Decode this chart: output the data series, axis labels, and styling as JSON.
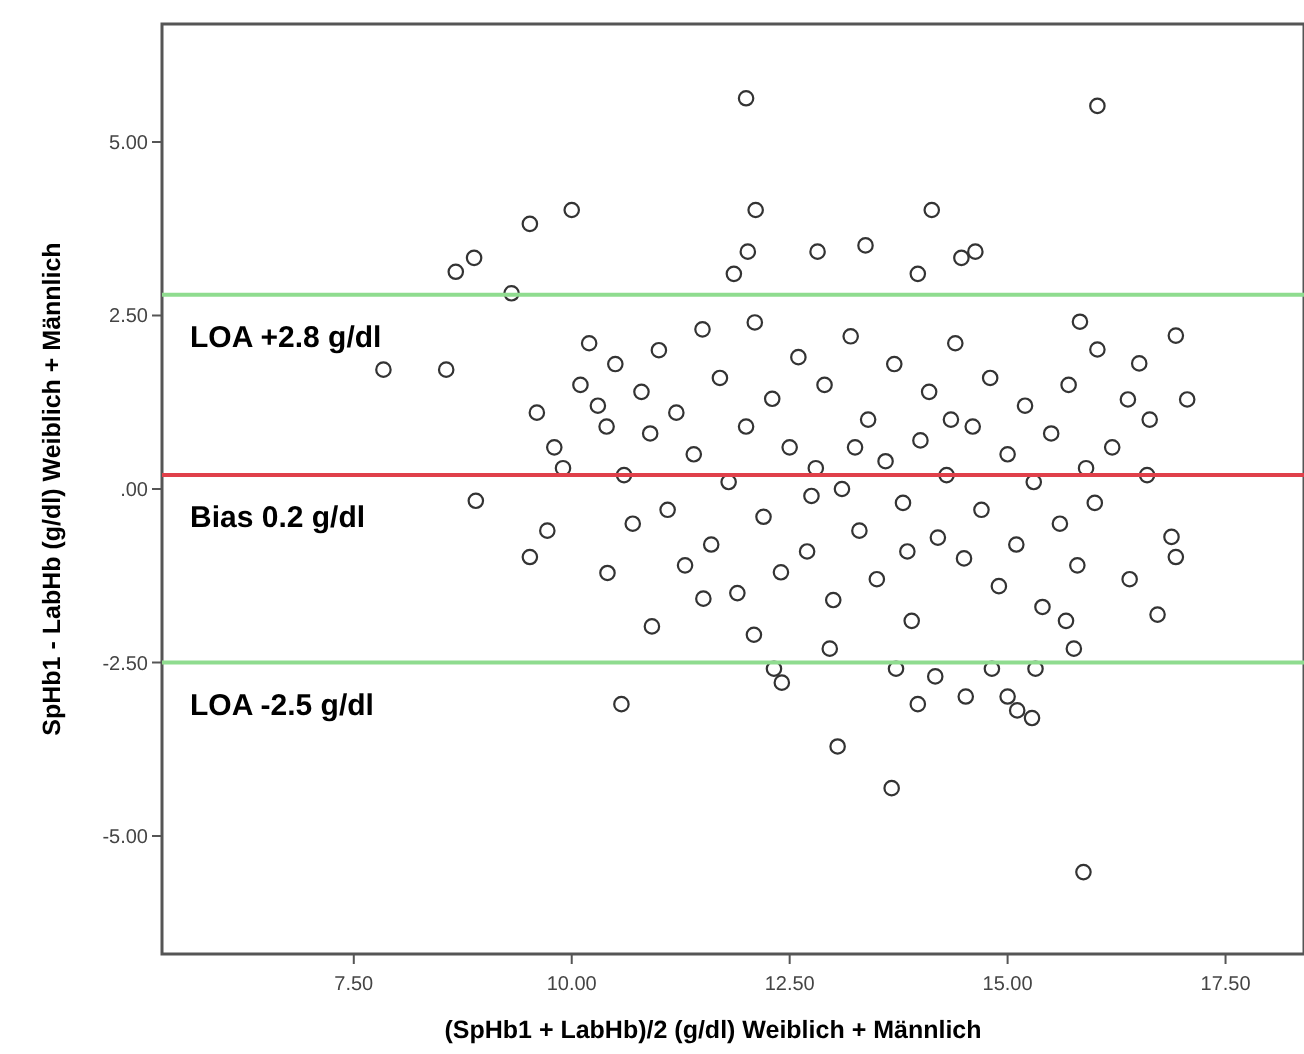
{
  "chart_data": {
    "type": "scatter",
    "xlabel": "(SpHb1 + LabHb)/2  (g/dl) Weiblich + Männlich",
    "ylabel": "SpHb1 - LabHb  (g/dl) Weiblich + Männlich",
    "xlim": [
      5.3,
      18.4
    ],
    "ylim": [
      -6.7,
      6.7
    ],
    "xticks": [
      {
        "value": 7.5,
        "label": "7.50"
      },
      {
        "value": 10,
        "label": "10.00"
      },
      {
        "value": 12.5,
        "label": "12.50"
      },
      {
        "value": 15,
        "label": "15.00"
      },
      {
        "value": 17.5,
        "label": "17.50"
      }
    ],
    "yticks": [
      {
        "value": 5,
        "label": "5.00"
      },
      {
        "value": 2.5,
        "label": "2.50"
      },
      {
        "value": 0,
        "label": ".00"
      },
      {
        "value": -2.5,
        "label": "-2.50"
      },
      {
        "value": -5,
        "label": "-5.00"
      }
    ],
    "marker": "circle",
    "grid": false,
    "ref_lines": [
      {
        "axis": "y",
        "value": 2.8,
        "label": "LOA +2.8 g/dl",
        "color": "#8fdc8f"
      },
      {
        "axis": "y",
        "value": 0.2,
        "label": "Bias 0.2 g/dl",
        "color": "#e0404a"
      },
      {
        "axis": "y",
        "value": -2.5,
        "label": "LOA -2.5 g/dl",
        "color": "#8fdc8f"
      }
    ],
    "series": [
      {
        "color": "#333333",
        "x": [
          12.0,
          16.03,
          10.0,
          9.52,
          8.88,
          8.67,
          9.31,
          7.84,
          8.56,
          12.11,
          14.13,
          12.02,
          12.82,
          13.37,
          14.47,
          14.63,
          13.97,
          11.86,
          16.93,
          17.06,
          15.83,
          16.03,
          16.51,
          16.38,
          16.63,
          10.57,
          10.92,
          9.52,
          10.41,
          9.72,
          8.9,
          13.05,
          13.67,
          15.87,
          13.97,
          14.52,
          15.0,
          15.28,
          15.11,
          12.41,
          12.32,
          14.17,
          13.72,
          14.82,
          15.32,
          15.76,
          16.72,
          16.93,
          16.88,
          15.67,
          12.96,
          12.09,
          11.51,
          9.6,
          9.8,
          9.9,
          10.1,
          10.2,
          10.3,
          10.4,
          10.5,
          10.6,
          10.7,
          10.8,
          10.9,
          11.0,
          11.1,
          11.2,
          11.3,
          11.4,
          11.5,
          11.6,
          11.7,
          11.8,
          11.9,
          12.0,
          12.1,
          12.2,
          12.3,
          12.4,
          12.5,
          12.6,
          12.7,
          12.8,
          12.9,
          13.0,
          13.1,
          13.2,
          13.3,
          13.4,
          13.5,
          13.6,
          13.7,
          13.8,
          13.9,
          14.0,
          14.1,
          14.2,
          14.3,
          14.4,
          14.5,
          14.6,
          14.7,
          14.8,
          14.9,
          15.0,
          15.1,
          15.2,
          15.3,
          15.4,
          15.5,
          15.6,
          15.7,
          15.8,
          15.9,
          16.0,
          16.2,
          16.4,
          16.6,
          13.25,
          13.85,
          14.35,
          12.75
        ],
        "values": [
          5.63,
          5.52,
          4.02,
          3.82,
          3.33,
          3.13,
          2.82,
          1.72,
          1.72,
          4.02,
          4.02,
          3.42,
          3.42,
          3.51,
          3.33,
          3.42,
          3.1,
          3.1,
          2.21,
          1.29,
          2.41,
          2.01,
          1.81,
          1.29,
          1.0,
          -3.1,
          -1.98,
          -0.98,
          -1.21,
          -0.6,
          -0.17,
          -3.71,
          -4.31,
          -5.52,
          -3.1,
          -2.99,
          -2.99,
          -3.3,
          -3.19,
          -2.79,
          -2.59,
          -2.7,
          -2.59,
          -2.59,
          -2.59,
          -2.3,
          -1.81,
          -0.98,
          -0.69,
          -1.9,
          -2.3,
          -2.1,
          -1.58,
          1.1,
          0.6,
          0.3,
          1.5,
          2.1,
          1.2,
          0.9,
          1.8,
          0.2,
          -0.5,
          1.4,
          0.8,
          2.0,
          -0.3,
          1.1,
          -1.1,
          0.5,
          2.3,
          -0.8,
          1.6,
          0.1,
          -1.5,
          0.9,
          2.4,
          -0.4,
          1.3,
          -1.2,
          0.6,
          1.9,
          -0.9,
          0.3,
          1.5,
          -1.6,
          0.0,
          2.2,
          -0.6,
          1.0,
          -1.3,
          0.4,
          1.8,
          -0.2,
          -1.9,
          0.7,
          1.4,
          -0.7,
          0.2,
          2.1,
          -1.0,
          0.9,
          -0.3,
          1.6,
          -1.4,
          0.5,
          -0.8,
          1.2,
          0.1,
          -1.7,
          0.8,
          -0.5,
          1.5,
          -1.1,
          0.3,
          -0.2,
          0.6,
          -1.3,
          0.2,
          0.6,
          -0.9,
          1.0,
          -0.1
        ]
      }
    ]
  }
}
